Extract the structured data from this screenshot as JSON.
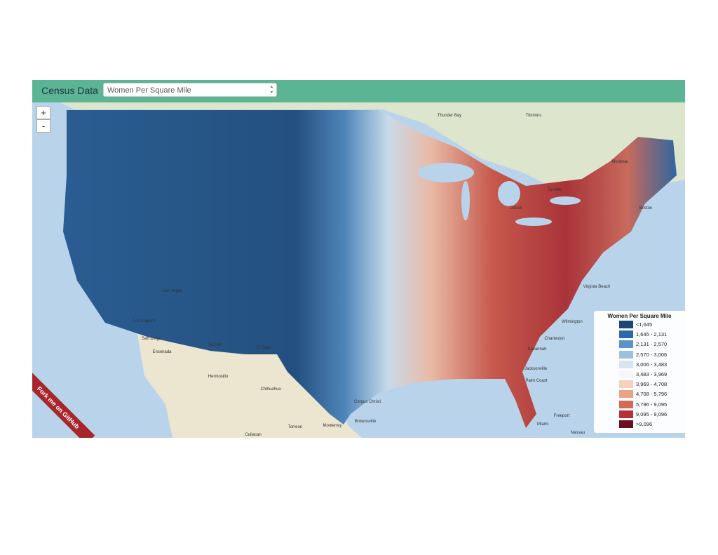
{
  "header": {
    "title": "Census Data",
    "select": "Women Per Square Mile"
  },
  "map": {
    "zoom_in": "+",
    "zoom_out": "-",
    "ribbon": "Fork me on GitHub",
    "places": [
      "Thunder Bay",
      "Timmins",
      "Montreal",
      "Toronto",
      "Boston",
      "Detroit",
      "Virginia Beach",
      "Wilmington",
      "Charleston",
      "Savannah",
      "Jacksonville",
      "Palm Coast",
      "Miami",
      "Freeport",
      "Nassau",
      "Corpus Christi",
      "Brownsville",
      "Monterrey",
      "Las Vegas",
      "Los Angeles",
      "San Diego",
      "Tucson",
      "El Paso",
      "Hermosillo",
      "Chihuahua",
      "Ensenada",
      "Torreon",
      "Culiacan"
    ]
  },
  "legend": {
    "title": "Women Per Square Mile",
    "items": [
      {
        "label": "<1,645",
        "color": "#1d4675"
      },
      {
        "label": "1,645 - 2,131",
        "color": "#2f69a8"
      },
      {
        "label": "2,131 - 2,570",
        "color": "#5b93c6"
      },
      {
        "label": "2,570 - 3,006",
        "color": "#9cc1de"
      },
      {
        "label": "3,006 - 3,483",
        "color": "#d6e5f1"
      },
      {
        "label": "3,483 - 3,969",
        "color": "#f7f7f7"
      },
      {
        "label": "3,969 - 4,708",
        "color": "#f6d1bd"
      },
      {
        "label": "4,708 - 5,796",
        "color": "#eba387"
      },
      {
        "label": "5,796 - 9,095",
        "color": "#d26a58"
      },
      {
        "label": "9,095 - 9,096",
        "color": "#b23435"
      },
      {
        "label": ">9,096",
        "color": "#6c0d1f"
      }
    ]
  }
}
